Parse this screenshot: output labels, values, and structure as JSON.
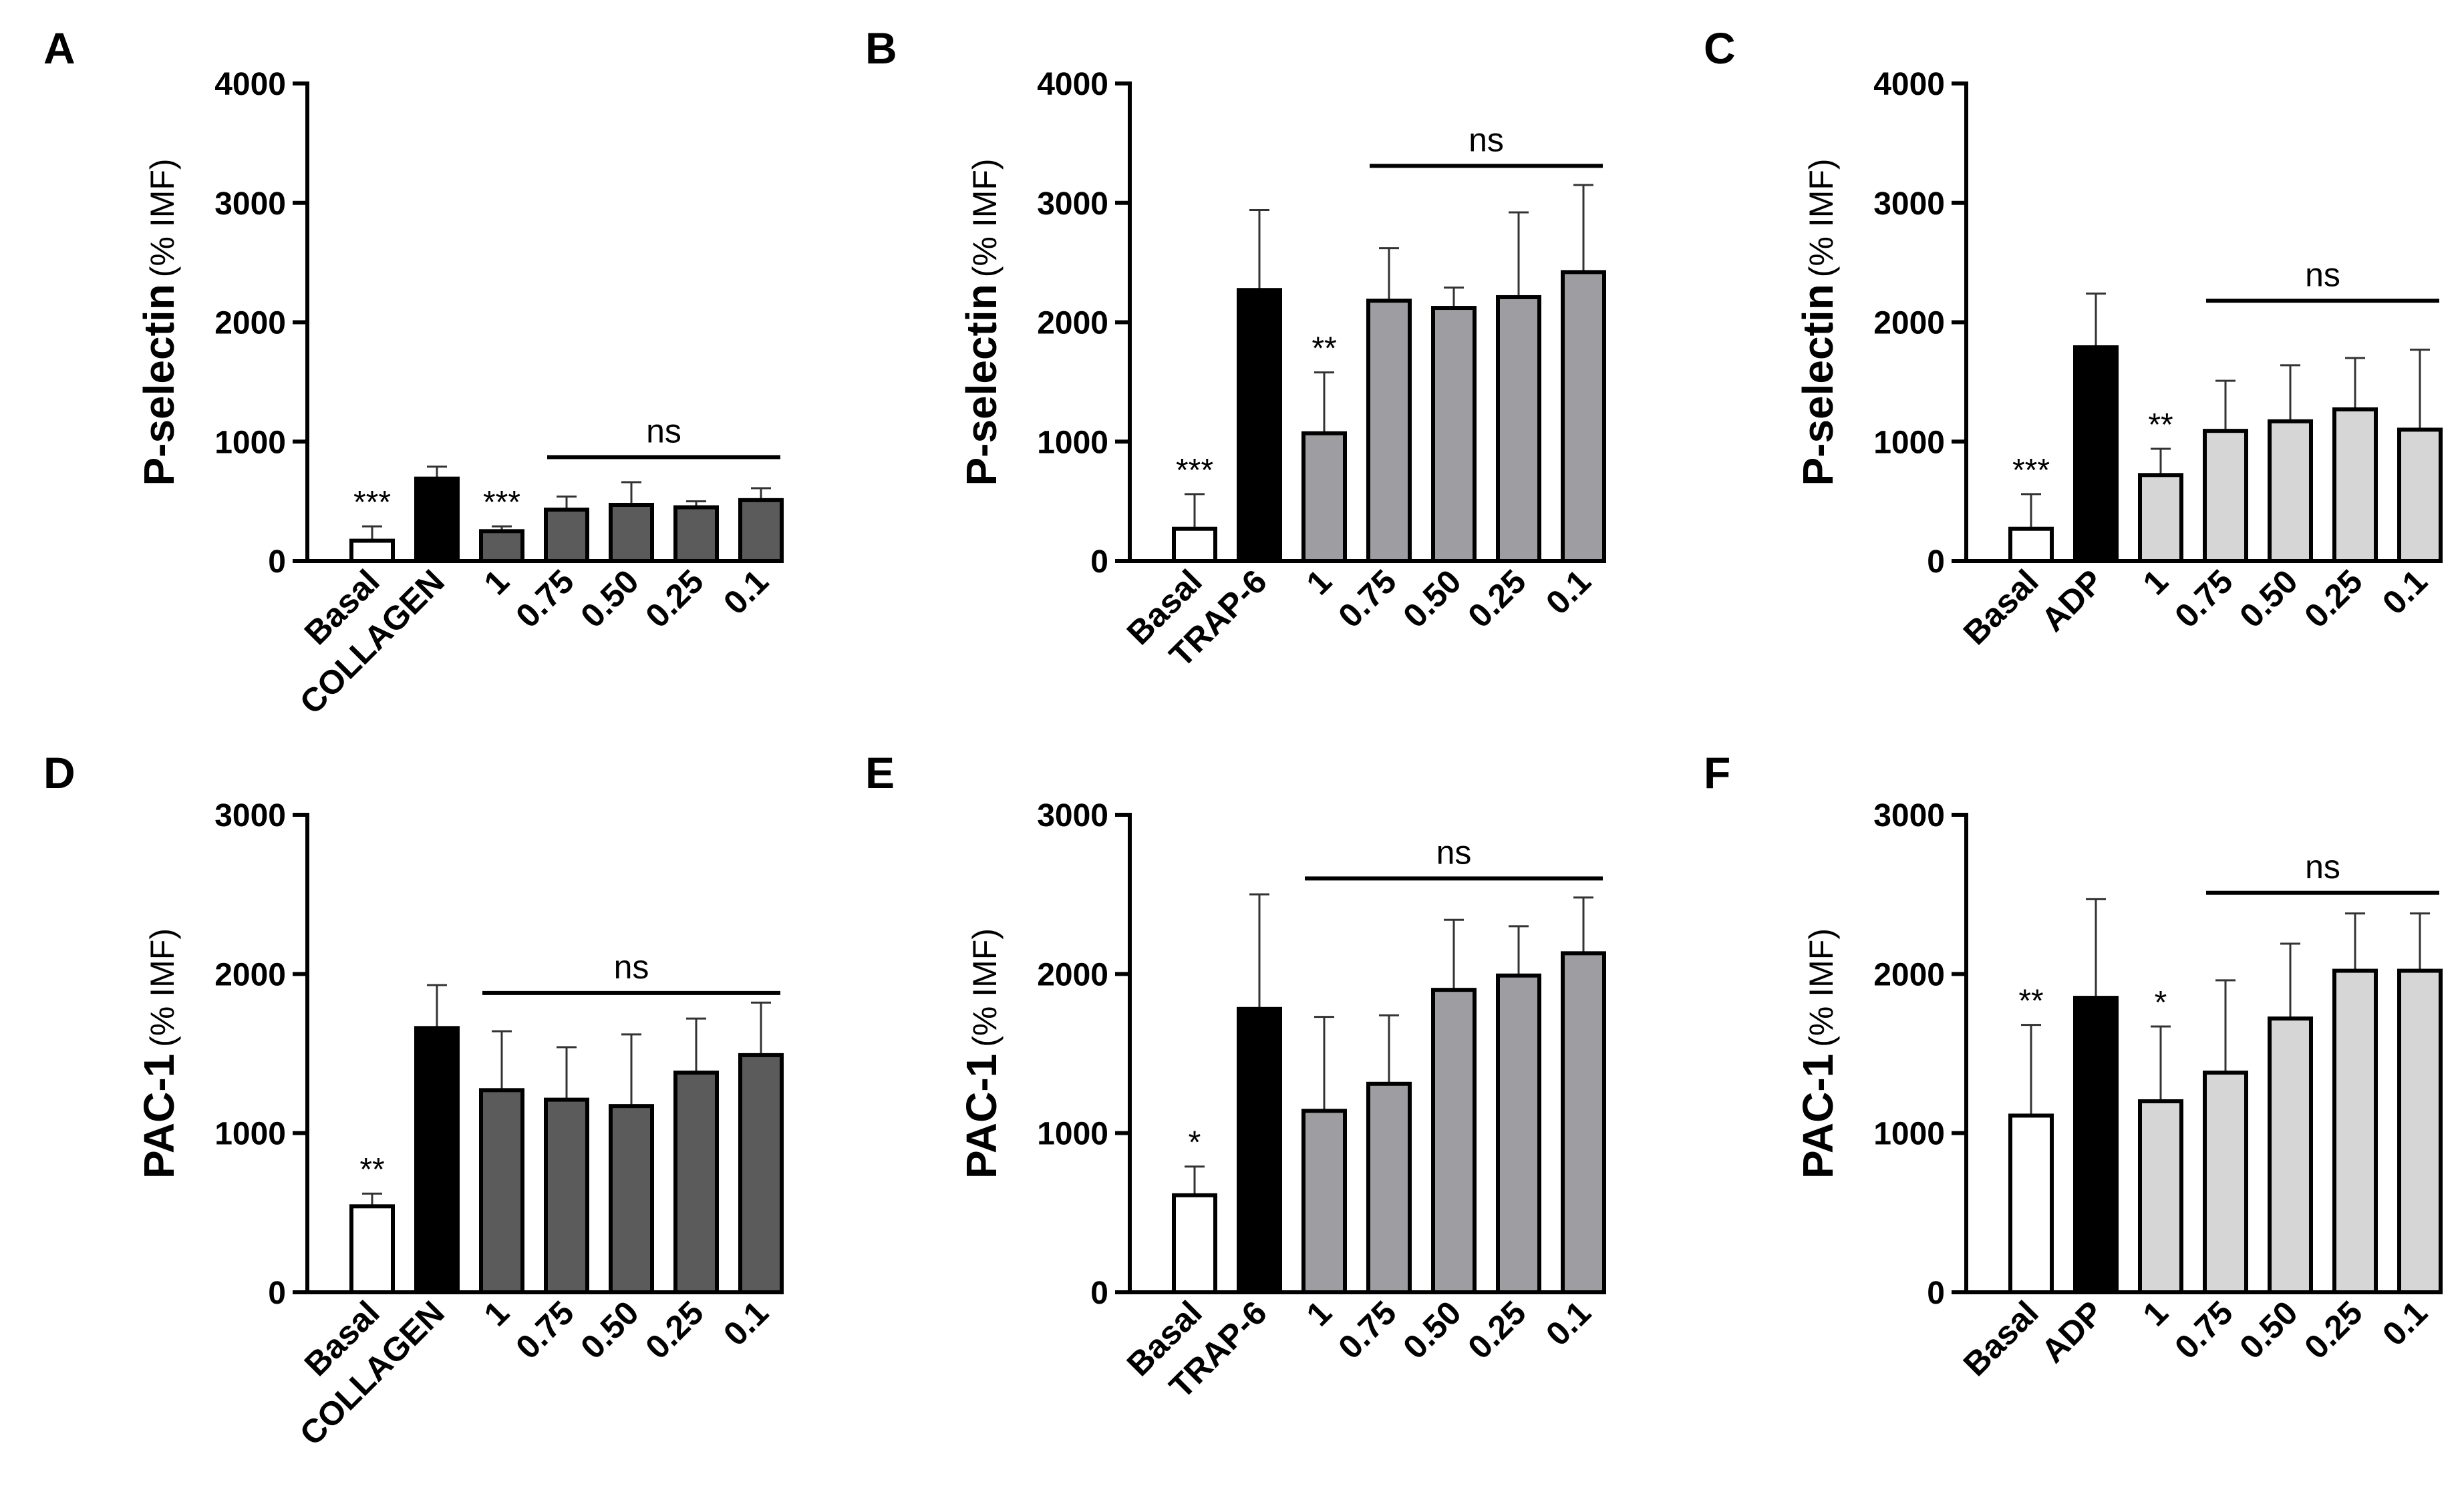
{
  "colors": {
    "white": "#ffffff",
    "black": "#000000",
    "dark_gray": "#5b5b5b",
    "mid_gray": "#9e9ea2",
    "light_gray": "#d6d6d6"
  },
  "chart_data": [
    {
      "panel": "A",
      "type": "bar",
      "ylabel_main": "P-selectin",
      "ylabel_unit": "(% IMF)",
      "ylim": [
        0,
        4000
      ],
      "yticks": [
        "0",
        "1000",
        "2000",
        "3000",
        "4000"
      ],
      "categories": [
        "Basal",
        "COLLAGEN",
        "1",
        "0.75",
        "0.50",
        "0.25",
        "0.1"
      ],
      "values": [
        170,
        690,
        250,
        430,
        470,
        450,
        510
      ],
      "errors": [
        120,
        100,
        40,
        110,
        190,
        50,
        100
      ],
      "fills": [
        "white",
        "black",
        "dark_gray",
        "dark_gray",
        "dark_gray",
        "dark_gray",
        "dark_gray"
      ],
      "significance": [
        "***",
        "",
        "***",
        "",
        "",
        "",
        ""
      ],
      "ns_bracket": {
        "label": "ns",
        "from": "0.75",
        "to": "0.1",
        "y": 870
      }
    },
    {
      "panel": "B",
      "type": "bar",
      "ylabel_main": "P-selectin",
      "ylabel_unit": "(% IMF)",
      "ylim": [
        0,
        4000
      ],
      "yticks": [
        "0",
        "1000",
        "2000",
        "3000",
        "4000"
      ],
      "categories": [
        "Basal",
        "TRAP-6",
        "1",
        "0.75",
        "0.50",
        "0.25",
        "0.1"
      ],
      "values": [
        270,
        2270,
        1070,
        2180,
        2120,
        2210,
        2420
      ],
      "errors": [
        290,
        670,
        510,
        440,
        170,
        710,
        730
      ],
      "fills": [
        "white",
        "black",
        "mid_gray",
        "mid_gray",
        "mid_gray",
        "mid_gray",
        "mid_gray"
      ],
      "significance": [
        "***",
        "",
        "**",
        "",
        "",
        "",
        ""
      ],
      "ns_bracket": {
        "label": "ns",
        "from": "0.75",
        "to": "0.1",
        "y": 3310
      }
    },
    {
      "panel": "C",
      "type": "bar",
      "ylabel_main": "P-selectin",
      "ylabel_unit": "(% IMF)",
      "ylim": [
        0,
        4000
      ],
      "yticks": [
        "0",
        "1000",
        "2000",
        "3000",
        "4000"
      ],
      "categories": [
        "Basal",
        "ADP",
        "1",
        "0.75",
        "0.50",
        "0.25",
        "0.1"
      ],
      "values": [
        270,
        1790,
        720,
        1090,
        1170,
        1270,
        1100
      ],
      "errors": [
        290,
        450,
        220,
        420,
        470,
        430,
        670
      ],
      "fills": [
        "white",
        "black",
        "light_gray",
        "light_gray",
        "light_gray",
        "light_gray",
        "light_gray"
      ],
      "significance": [
        "***",
        "",
        "**",
        "",
        "",
        "",
        ""
      ],
      "ns_bracket": {
        "label": "ns",
        "from": "0.75",
        "to": "0.1",
        "y": 2180
      }
    },
    {
      "panel": "D",
      "type": "bar",
      "ylabel_main": "PAC-1",
      "ylabel_unit": "(% IMF)",
      "ylim": [
        0,
        3000
      ],
      "yticks": [
        "0",
        "1000",
        "2000",
        "3000"
      ],
      "categories": [
        "Basal",
        "COLLAGEN",
        "1",
        "0.75",
        "0.50",
        "0.25",
        "0.1"
      ],
      "values": [
        540,
        1660,
        1270,
        1210,
        1170,
        1380,
        1490
      ],
      "errors": [
        80,
        270,
        370,
        330,
        450,
        340,
        330
      ],
      "fills": [
        "white",
        "black",
        "dark_gray",
        "dark_gray",
        "dark_gray",
        "dark_gray",
        "dark_gray"
      ],
      "significance": [
        "**",
        "",
        "",
        "",
        "",
        "",
        ""
      ],
      "ns_bracket": {
        "label": "ns",
        "from": "1",
        "to": "0.1",
        "y": 1880
      }
    },
    {
      "panel": "E",
      "type": "bar",
      "ylabel_main": "PAC-1",
      "ylabel_unit": "(% IMF)",
      "ylim": [
        0,
        3000
      ],
      "yticks": [
        "0",
        "1000",
        "2000",
        "3000"
      ],
      "categories": [
        "Basal",
        "TRAP-6",
        "1",
        "0.75",
        "0.50",
        "0.25",
        "0.1"
      ],
      "values": [
        610,
        1780,
        1140,
        1310,
        1900,
        1990,
        2130
      ],
      "errors": [
        180,
        720,
        590,
        430,
        440,
        310,
        350
      ],
      "fills": [
        "white",
        "black",
        "mid_gray",
        "mid_gray",
        "mid_gray",
        "mid_gray",
        "mid_gray"
      ],
      "significance": [
        "*",
        "",
        "",
        "",
        "",
        "",
        ""
      ],
      "ns_bracket": {
        "label": "ns",
        "from": "1",
        "to": "0.1",
        "y": 2600
      }
    },
    {
      "panel": "F",
      "type": "bar",
      "ylabel_main": "PAC-1",
      "ylabel_unit": "(% IMF)",
      "ylim": [
        0,
        3000
      ],
      "yticks": [
        "0",
        "1000",
        "2000",
        "3000"
      ],
      "categories": [
        "Basal",
        "ADP",
        "1",
        "0.75",
        "0.50",
        "0.25",
        "0.1"
      ],
      "values": [
        1110,
        1850,
        1200,
        1380,
        1720,
        2020,
        2020
      ],
      "errors": [
        570,
        620,
        470,
        580,
        470,
        360,
        360
      ],
      "fills": [
        "white",
        "black",
        "light_gray",
        "light_gray",
        "light_gray",
        "light_gray",
        "light_gray"
      ],
      "significance": [
        "**",
        "",
        "*",
        "",
        "",
        "",
        ""
      ],
      "ns_bracket": {
        "label": "ns",
        "from": "0.75",
        "to": "0.1",
        "y": 2510
      }
    }
  ]
}
